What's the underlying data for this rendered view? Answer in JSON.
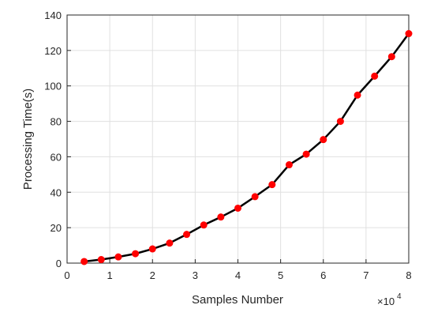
{
  "chart_data": {
    "type": "line",
    "x_label": "Samples Number",
    "y_label": "Processing Time(s)",
    "x_exponent_base": "×10",
    "x_exponent": "4",
    "x": [
      0.4,
      0.8,
      1.2,
      1.6,
      2.0,
      2.4,
      2.8,
      3.2,
      3.6,
      4.0,
      4.4,
      4.8,
      5.2,
      5.6,
      6.0,
      6.4,
      6.8,
      7.2,
      7.6,
      8.0
    ],
    "series": [
      {
        "color": "#000000",
        "marker_color": "#ff0000",
        "values": [
          0.9,
          2,
          3.5,
          5.3,
          8,
          11.3,
          16.2,
          21.5,
          26,
          31,
          37.5,
          44.3,
          55.5,
          61.5,
          69.7,
          80,
          94.8,
          105.5,
          116.5,
          129.5
        ]
      }
    ],
    "xlim": [
      0,
      8
    ],
    "xticks": [
      0,
      1,
      2,
      3,
      4,
      5,
      6,
      7,
      8
    ],
    "ylim": [
      0,
      140
    ],
    "yticks": [
      0,
      20,
      40,
      60,
      80,
      100,
      120,
      140
    ],
    "grid": true
  }
}
